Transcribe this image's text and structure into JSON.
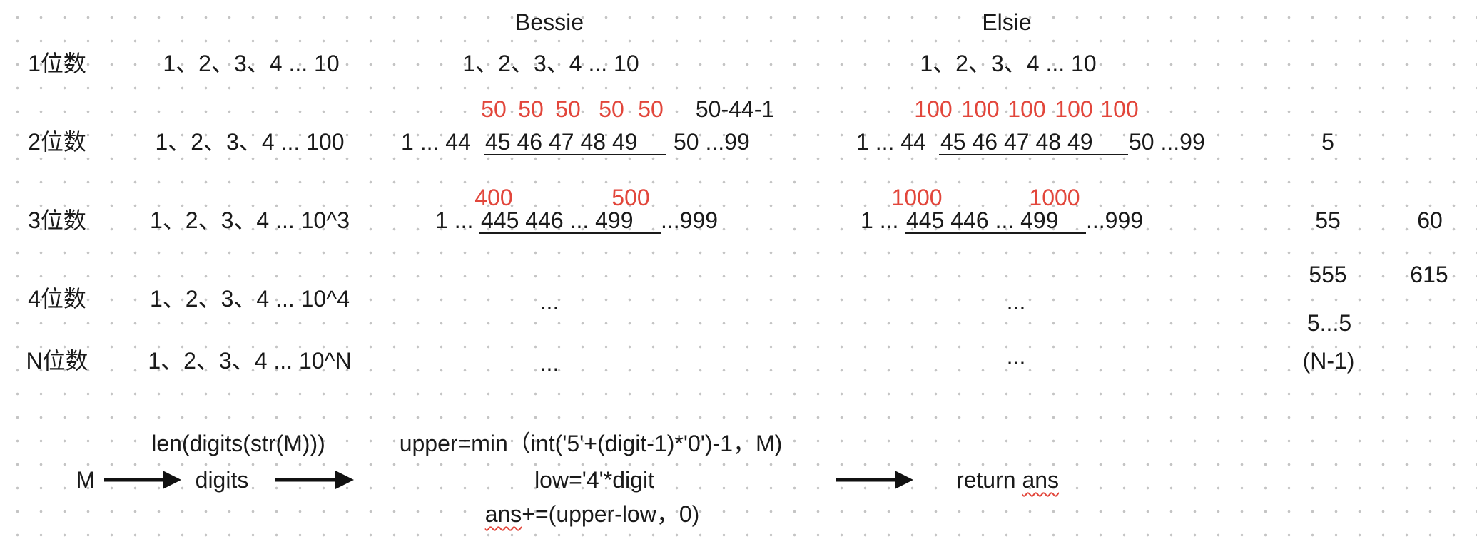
{
  "headers": {
    "bessie": "Bessie",
    "elsie": "Elsie"
  },
  "rows": [
    {
      "label": "1位数",
      "range": "1、2、3、4 ... 10"
    },
    {
      "label": "2位数",
      "range": "1、2、3、4 ... 100"
    },
    {
      "label": "3位数",
      "range": "1、2、3、4 ... 10^3"
    },
    {
      "label": "4位数",
      "range": "1、2、3、4 ... 10^4"
    },
    {
      "label": "N位数",
      "range": "1、2、3、4 ... 10^N"
    }
  ],
  "bessie": {
    "row1": "1、2、3、4 ... 10",
    "row2_red": [
      "50",
      "50",
      "50",
      "50",
      "50"
    ],
    "row2_calc": "50-44-1",
    "row2_prefix": "1 ... 44",
    "row2_under": "45 46 47 48 49",
    "row2_suffix": "50 ...99",
    "row3_red": [
      "400",
      "500"
    ],
    "row3_prefix": "1 ...",
    "row3_under": "445 446 ... 499",
    "row3_suffix": "...999",
    "row4": "...",
    "row5": "..."
  },
  "elsie": {
    "row1": "1、2、3、4 ... 10",
    "row2_red": [
      "100",
      "100",
      "100",
      "100",
      "100"
    ],
    "row2_prefix": "1 ... 44",
    "row2_under": "45 46 47 48 49",
    "row2_suffix": "50 ...99",
    "row3_red": [
      "1000",
      "1000"
    ],
    "row3_prefix": "1 ...",
    "row3_under": "445 446 ... 499",
    "row3_suffix": "...999",
    "row4": "...",
    "row5": "..."
  },
  "counts": {
    "col1": [
      "5",
      "55",
      "555",
      "5...5",
      "(N-1)"
    ],
    "col2": [
      "60",
      "615"
    ]
  },
  "flow": {
    "input": "M",
    "step1_label": "len(digits(str(M)))",
    "step1_output": "digits",
    "step2_line1": "upper=min（int('5'+(digit-1)*'0')-1，M)",
    "step2_line2": "low='4'*digit",
    "step2_line3_a": "ans",
    "step2_line3_b": "+=(upper-low，0)",
    "result_a": "return ",
    "result_b": "ans"
  }
}
